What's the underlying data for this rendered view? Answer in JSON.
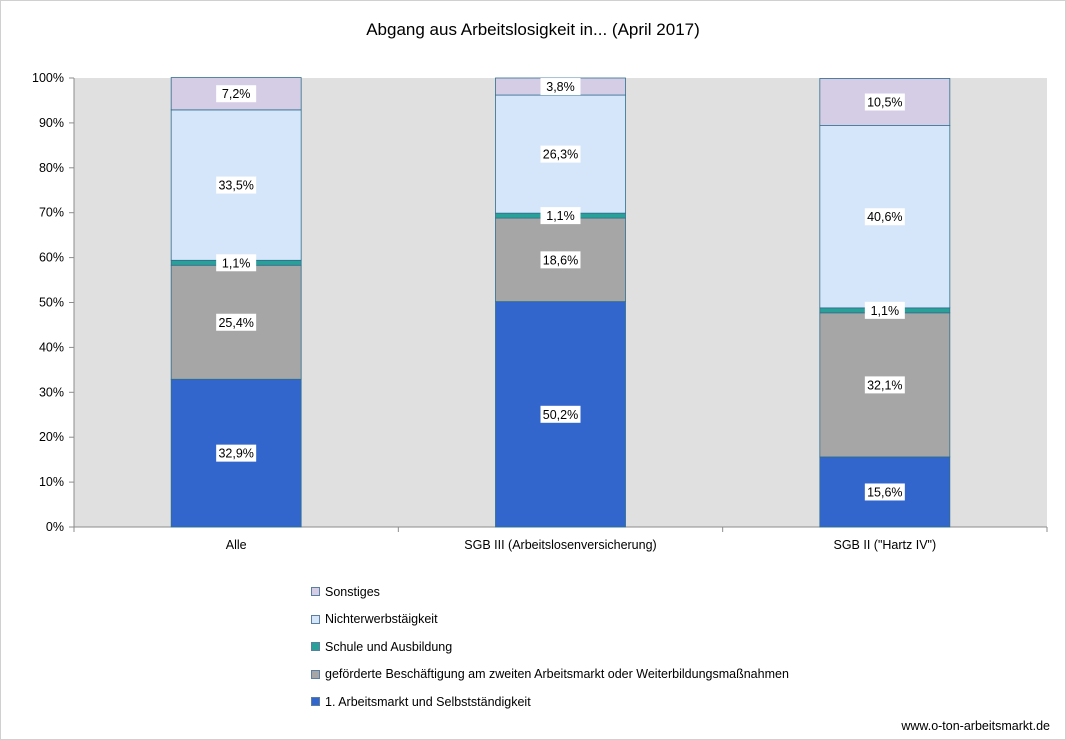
{
  "chart_data": {
    "type": "bar",
    "stacked": true,
    "title": "Abgang aus Arbeitslosigkeit in... (April 2017)",
    "categories": [
      "Alle",
      "SGB III (Arbeitslosenversicherung)",
      "SGB II (\"Hartz IV\")"
    ],
    "ylim": [
      0,
      100
    ],
    "yticks": [
      "0%",
      "10%",
      "20%",
      "30%",
      "40%",
      "50%",
      "60%",
      "70%",
      "80%",
      "90%",
      "100%"
    ],
    "grid": false,
    "legend_position": "bottom",
    "series": [
      {
        "name": "1. Arbeitsmarkt und Selbstständigkeit",
        "color": "#3366cc",
        "values": [
          32.9,
          50.2,
          15.6
        ],
        "labels": [
          "32,9%",
          "50,2%",
          "15,6%"
        ]
      },
      {
        "name": "geförderte Beschäftigung am zweiten Arbeitsmarkt oder Weiterbildungsmaßnahmen",
        "color": "#a6a6a6",
        "values": [
          25.4,
          18.6,
          32.1
        ],
        "labels": [
          "25,4%",
          "18,6%",
          "32,1%"
        ]
      },
      {
        "name": "Schule und Ausbildung",
        "color": "#2aa198",
        "values": [
          1.1,
          1.1,
          1.1
        ],
        "labels": [
          "1,1%",
          "1,1%",
          "1,1%"
        ]
      },
      {
        "name": "Nichterwerbstäigkeit",
        "color": "#d6e6fa",
        "values": [
          33.5,
          26.3,
          40.6
        ],
        "labels": [
          "33,5%",
          "26,3%",
          "40,6%"
        ]
      },
      {
        "name": "Sonstiges",
        "color": "#d5cde5",
        "values": [
          7.2,
          3.8,
          10.5
        ],
        "labels": [
          "7,2%",
          "3,8%",
          "10,5%"
        ]
      }
    ],
    "legend_order": [
      "Sonstiges",
      "Nichterwerbstäigkeit",
      "Schule und Ausbildung",
      "geförderte Beschäftigung am zweiten Arbeitsmarkt oder Weiterbildungsmaßnahmen",
      "1. Arbeitsmarkt und Selbstständigkeit"
    ],
    "plot_background": "#e0e0e0",
    "bar_outline": "#2e6e8e"
  },
  "source": "www.o-ton-arbeitsmarkt.de"
}
